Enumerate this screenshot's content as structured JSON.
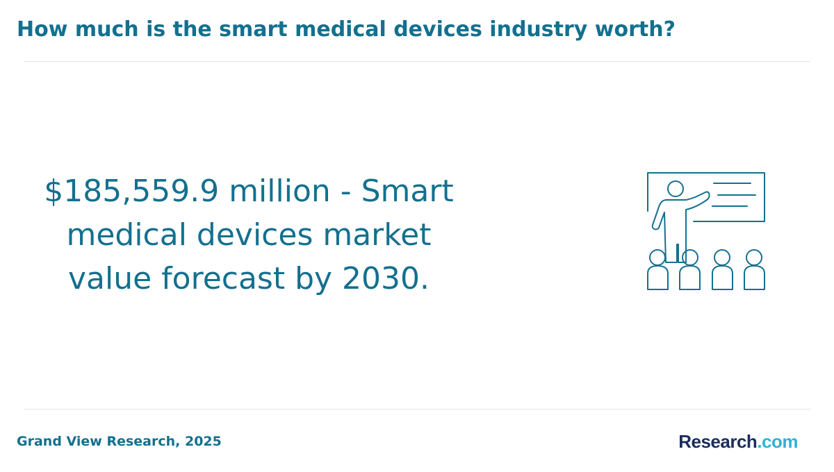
{
  "header": {
    "title": "How much is the smart medical devices industry worth?"
  },
  "main": {
    "headline": "$185,559.9 million - Smart medical devices market value forecast by 2030.",
    "illustration_icon": "presentation-icon"
  },
  "footer": {
    "source": "Grand View Research, 2025",
    "logo_word": "Research",
    "logo_suffix": ".com"
  },
  "colors": {
    "accent": "#13708f",
    "logo_dark": "#1b2d5a",
    "logo_light": "#2fb3d6",
    "divider": "#e4e4e4"
  }
}
